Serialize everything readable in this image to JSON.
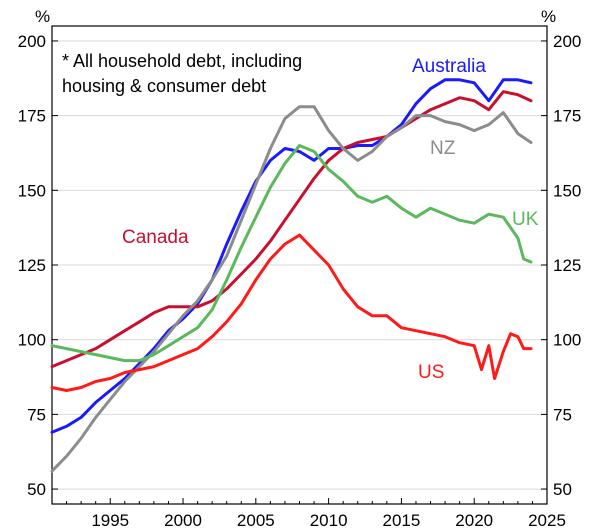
{
  "chart_data": {
    "type": "line",
    "title": "",
    "unit_left": "%",
    "unit_right": "%",
    "note_lines": [
      "*  All household debt, including",
      "housing & consumer debt"
    ],
    "xlim": [
      1991,
      2025
    ],
    "ylim": [
      45,
      205
    ],
    "x_ticks": [
      1995,
      2000,
      2005,
      2010,
      2015,
      2020,
      2025
    ],
    "y_ticks": [
      50,
      75,
      100,
      125,
      150,
      175,
      200
    ],
    "grid": true,
    "series": [
      {
        "name": "Australia",
        "color": "#1a1aff",
        "points": [
          [
            1991,
            69
          ],
          [
            1992,
            71
          ],
          [
            1993,
            74
          ],
          [
            1994,
            79
          ],
          [
            1995,
            83
          ],
          [
            1996,
            87
          ],
          [
            1997,
            92
          ],
          [
            1998,
            97
          ],
          [
            1999,
            103
          ],
          [
            2000,
            107
          ],
          [
            2001,
            112
          ],
          [
            2002,
            120
          ],
          [
            2003,
            132
          ],
          [
            2004,
            143
          ],
          [
            2005,
            153
          ],
          [
            2006,
            160
          ],
          [
            2007,
            164
          ],
          [
            2008,
            163
          ],
          [
            2009,
            160
          ],
          [
            2010,
            164
          ],
          [
            2011,
            164
          ],
          [
            2012,
            165
          ],
          [
            2013,
            165
          ],
          [
            2014,
            168
          ],
          [
            2015,
            172
          ],
          [
            2016,
            179
          ],
          [
            2017,
            184
          ],
          [
            2018,
            187
          ],
          [
            2019,
            187
          ],
          [
            2020,
            186
          ],
          [
            2021,
            180
          ],
          [
            2022,
            187
          ],
          [
            2023,
            187
          ],
          [
            2023.9,
            186
          ]
        ]
      },
      {
        "name": "Canada",
        "color": "#c8102e",
        "points": [
          [
            1991,
            91
          ],
          [
            1992,
            93
          ],
          [
            1993,
            95
          ],
          [
            1994,
            97
          ],
          [
            1995,
            100
          ],
          [
            1996,
            103
          ],
          [
            1997,
            106
          ],
          [
            1998,
            109
          ],
          [
            1999,
            111
          ],
          [
            2000,
            111
          ],
          [
            2001,
            111
          ],
          [
            2002,
            113
          ],
          [
            2003,
            117
          ],
          [
            2004,
            122
          ],
          [
            2005,
            127
          ],
          [
            2006,
            133
          ],
          [
            2007,
            140
          ],
          [
            2008,
            147
          ],
          [
            2009,
            154
          ],
          [
            2010,
            160
          ],
          [
            2011,
            164
          ],
          [
            2012,
            166
          ],
          [
            2013,
            167
          ],
          [
            2014,
            168
          ],
          [
            2015,
            171
          ],
          [
            2016,
            174
          ],
          [
            2017,
            177
          ],
          [
            2018,
            179
          ],
          [
            2019,
            181
          ],
          [
            2020,
            180
          ],
          [
            2021,
            177
          ],
          [
            2022,
            183
          ],
          [
            2023,
            182
          ],
          [
            2023.9,
            180
          ]
        ]
      },
      {
        "name": "NZ",
        "color": "#8c8c8c",
        "points": [
          [
            1991,
            56
          ],
          [
            1992,
            61
          ],
          [
            1993,
            67
          ],
          [
            1994,
            74
          ],
          [
            1995,
            80
          ],
          [
            1996,
            86
          ],
          [
            1997,
            91
          ],
          [
            1998,
            96
          ],
          [
            1999,
            102
          ],
          [
            2000,
            108
          ],
          [
            2001,
            113
          ],
          [
            2002,
            120
          ],
          [
            2003,
            128
          ],
          [
            2004,
            140
          ],
          [
            2005,
            152
          ],
          [
            2006,
            164
          ],
          [
            2007,
            174
          ],
          [
            2008,
            178
          ],
          [
            2009,
            178
          ],
          [
            2010,
            170
          ],
          [
            2011,
            164
          ],
          [
            2012,
            160
          ],
          [
            2013,
            163
          ],
          [
            2014,
            168
          ],
          [
            2015,
            171
          ],
          [
            2016,
            175
          ],
          [
            2017,
            175
          ],
          [
            2018,
            173
          ],
          [
            2019,
            172
          ],
          [
            2020,
            170
          ],
          [
            2021,
            172
          ],
          [
            2022,
            176
          ],
          [
            2023,
            169
          ],
          [
            2023.9,
            166
          ]
        ]
      },
      {
        "name": "UK",
        "color": "#5cb85c",
        "points": [
          [
            1991,
            98
          ],
          [
            1992,
            97
          ],
          [
            1993,
            96
          ],
          [
            1994,
            95
          ],
          [
            1995,
            94
          ],
          [
            1996,
            93
          ],
          [
            1997,
            93
          ],
          [
            1998,
            95
          ],
          [
            1999,
            98
          ],
          [
            2000,
            101
          ],
          [
            2001,
            104
          ],
          [
            2002,
            110
          ],
          [
            2003,
            120
          ],
          [
            2004,
            131
          ],
          [
            2005,
            141
          ],
          [
            2006,
            151
          ],
          [
            2007,
            159
          ],
          [
            2008,
            165
          ],
          [
            2009,
            163
          ],
          [
            2010,
            157
          ],
          [
            2011,
            153
          ],
          [
            2012,
            148
          ],
          [
            2013,
            146
          ],
          [
            2014,
            148
          ],
          [
            2015,
            144
          ],
          [
            2016,
            141
          ],
          [
            2017,
            144
          ],
          [
            2018,
            142
          ],
          [
            2019,
            140
          ],
          [
            2020,
            139
          ],
          [
            2021,
            142
          ],
          [
            2022,
            141
          ],
          [
            2023,
            134
          ],
          [
            2023.4,
            127
          ],
          [
            2023.9,
            126
          ]
        ]
      },
      {
        "name": "US",
        "color": "#ff1a1a",
        "points": [
          [
            1991,
            84
          ],
          [
            1992,
            83
          ],
          [
            1993,
            84
          ],
          [
            1994,
            86
          ],
          [
            1995,
            87
          ],
          [
            1996,
            89
          ],
          [
            1997,
            90
          ],
          [
            1998,
            91
          ],
          [
            1999,
            93
          ],
          [
            2000,
            95
          ],
          [
            2001,
            97
          ],
          [
            2002,
            101
          ],
          [
            2003,
            106
          ],
          [
            2004,
            112
          ],
          [
            2005,
            120
          ],
          [
            2006,
            127
          ],
          [
            2007,
            132
          ],
          [
            2008,
            135
          ],
          [
            2009,
            130
          ],
          [
            2010,
            125
          ],
          [
            2011,
            117
          ],
          [
            2012,
            111
          ],
          [
            2013,
            108
          ],
          [
            2014,
            108
          ],
          [
            2015,
            104
          ],
          [
            2016,
            103
          ],
          [
            2017,
            102
          ],
          [
            2018,
            101
          ],
          [
            2019,
            99
          ],
          [
            2020,
            98
          ],
          [
            2020.5,
            90
          ],
          [
            2021,
            98
          ],
          [
            2021.4,
            87
          ],
          [
            2022,
            96
          ],
          [
            2022.5,
            102
          ],
          [
            2023,
            101
          ],
          [
            2023.4,
            97
          ],
          [
            2023.9,
            97
          ]
        ]
      }
    ]
  }
}
